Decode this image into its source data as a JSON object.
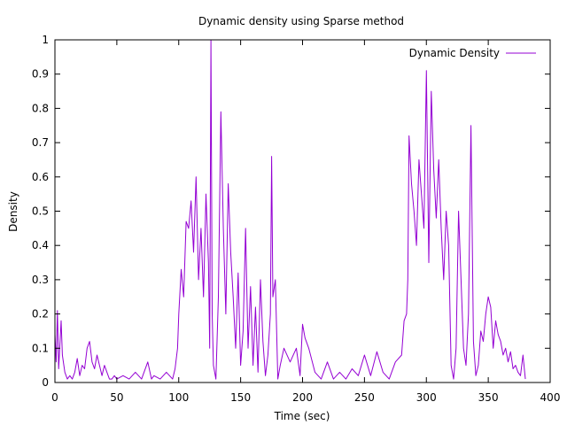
{
  "chart_data": {
    "type": "line",
    "title": "Dynamic density using Sparse method",
    "xlabel": "Time (sec)",
    "ylabel": "Density",
    "xlim": [
      0,
      400
    ],
    "ylim": [
      0,
      1
    ],
    "x_ticks": [
      0,
      50,
      100,
      150,
      200,
      250,
      300,
      350,
      400
    ],
    "x_tick_labels": [
      "0",
      "50",
      "100",
      "150",
      "200",
      "250",
      "300",
      "350",
      "400"
    ],
    "y_ticks": [
      0,
      0.1,
      0.2,
      0.3,
      0.4,
      0.5,
      0.6,
      0.7,
      0.8,
      0.9,
      1
    ],
    "y_tick_labels": [
      "0",
      "0.1",
      "0.2",
      "0.3",
      "0.4",
      "0.5",
      "0.6",
      "0.7",
      "0.8",
      "0.9",
      "1"
    ],
    "grid": false,
    "legend_position": "top-right",
    "series": [
      {
        "name": "Dynamic Density",
        "color": "#9400d3",
        "x": [
          0,
          1,
          2,
          3,
          4,
          5,
          6,
          8,
          10,
          12,
          14,
          16,
          18,
          20,
          22,
          24,
          26,
          28,
          30,
          32,
          34,
          36,
          38,
          40,
          42,
          44,
          46,
          48,
          50,
          55,
          60,
          65,
          70,
          75,
          78,
          80,
          85,
          90,
          95,
          97,
          99,
          100,
          102,
          104,
          106,
          108,
          110,
          112,
          114,
          116,
          118,
          120,
          122,
          124,
          125,
          126,
          127,
          128,
          130,
          132,
          134,
          136,
          138,
          140,
          142,
          144,
          146,
          148,
          150,
          152,
          154,
          156,
          158,
          160,
          162,
          164,
          166,
          168,
          170,
          172,
          174,
          175,
          176,
          178,
          180,
          182,
          185,
          190,
          195,
          198,
          200,
          202,
          205,
          210,
          215,
          220,
          225,
          230,
          235,
          240,
          245,
          250,
          255,
          260,
          265,
          270,
          275,
          280,
          282,
          284,
          285,
          286,
          288,
          290,
          292,
          294,
          296,
          298,
          300,
          302,
          304,
          306,
          308,
          310,
          312,
          314,
          316,
          318,
          320,
          322,
          324,
          326,
          328,
          330,
          332,
          334,
          336,
          338,
          340,
          342,
          344,
          346,
          348,
          350,
          352,
          354,
          356,
          358,
          360,
          362,
          364,
          366,
          368,
          370,
          372,
          374,
          376,
          378,
          380
        ],
        "values": [
          0.14,
          0.06,
          0.21,
          0.04,
          0.11,
          0.18,
          0.08,
          0.03,
          0.01,
          0.02,
          0.01,
          0.03,
          0.07,
          0.02,
          0.05,
          0.04,
          0.1,
          0.12,
          0.06,
          0.04,
          0.08,
          0.05,
          0.02,
          0.05,
          0.03,
          0.01,
          0.01,
          0.02,
          0.01,
          0.02,
          0.01,
          0.03,
          0.01,
          0.06,
          0.01,
          0.02,
          0.01,
          0.03,
          0.01,
          0.04,
          0.1,
          0.2,
          0.33,
          0.25,
          0.47,
          0.45,
          0.53,
          0.38,
          0.6,
          0.3,
          0.45,
          0.25,
          0.55,
          0.35,
          0.1,
          1.0,
          0.2,
          0.05,
          0.01,
          0.25,
          0.79,
          0.45,
          0.2,
          0.58,
          0.38,
          0.25,
          0.1,
          0.32,
          0.05,
          0.15,
          0.45,
          0.1,
          0.28,
          0.05,
          0.22,
          0.03,
          0.3,
          0.12,
          0.02,
          0.08,
          0.2,
          0.66,
          0.25,
          0.3,
          0.01,
          0.05,
          0.1,
          0.06,
          0.1,
          0.02,
          0.17,
          0.13,
          0.1,
          0.03,
          0.01,
          0.06,
          0.01,
          0.03,
          0.01,
          0.04,
          0.02,
          0.08,
          0.02,
          0.09,
          0.03,
          0.01,
          0.06,
          0.08,
          0.18,
          0.2,
          0.3,
          0.72,
          0.58,
          0.5,
          0.4,
          0.65,
          0.55,
          0.45,
          0.91,
          0.35,
          0.85,
          0.62,
          0.48,
          0.65,
          0.45,
          0.3,
          0.5,
          0.4,
          0.05,
          0.01,
          0.1,
          0.5,
          0.3,
          0.1,
          0.05,
          0.2,
          0.75,
          0.12,
          0.02,
          0.05,
          0.15,
          0.12,
          0.2,
          0.25,
          0.22,
          0.1,
          0.18,
          0.14,
          0.12,
          0.08,
          0.1,
          0.06,
          0.09,
          0.04,
          0.05,
          0.03,
          0.02,
          0.08,
          0.01
        ]
      }
    ]
  }
}
